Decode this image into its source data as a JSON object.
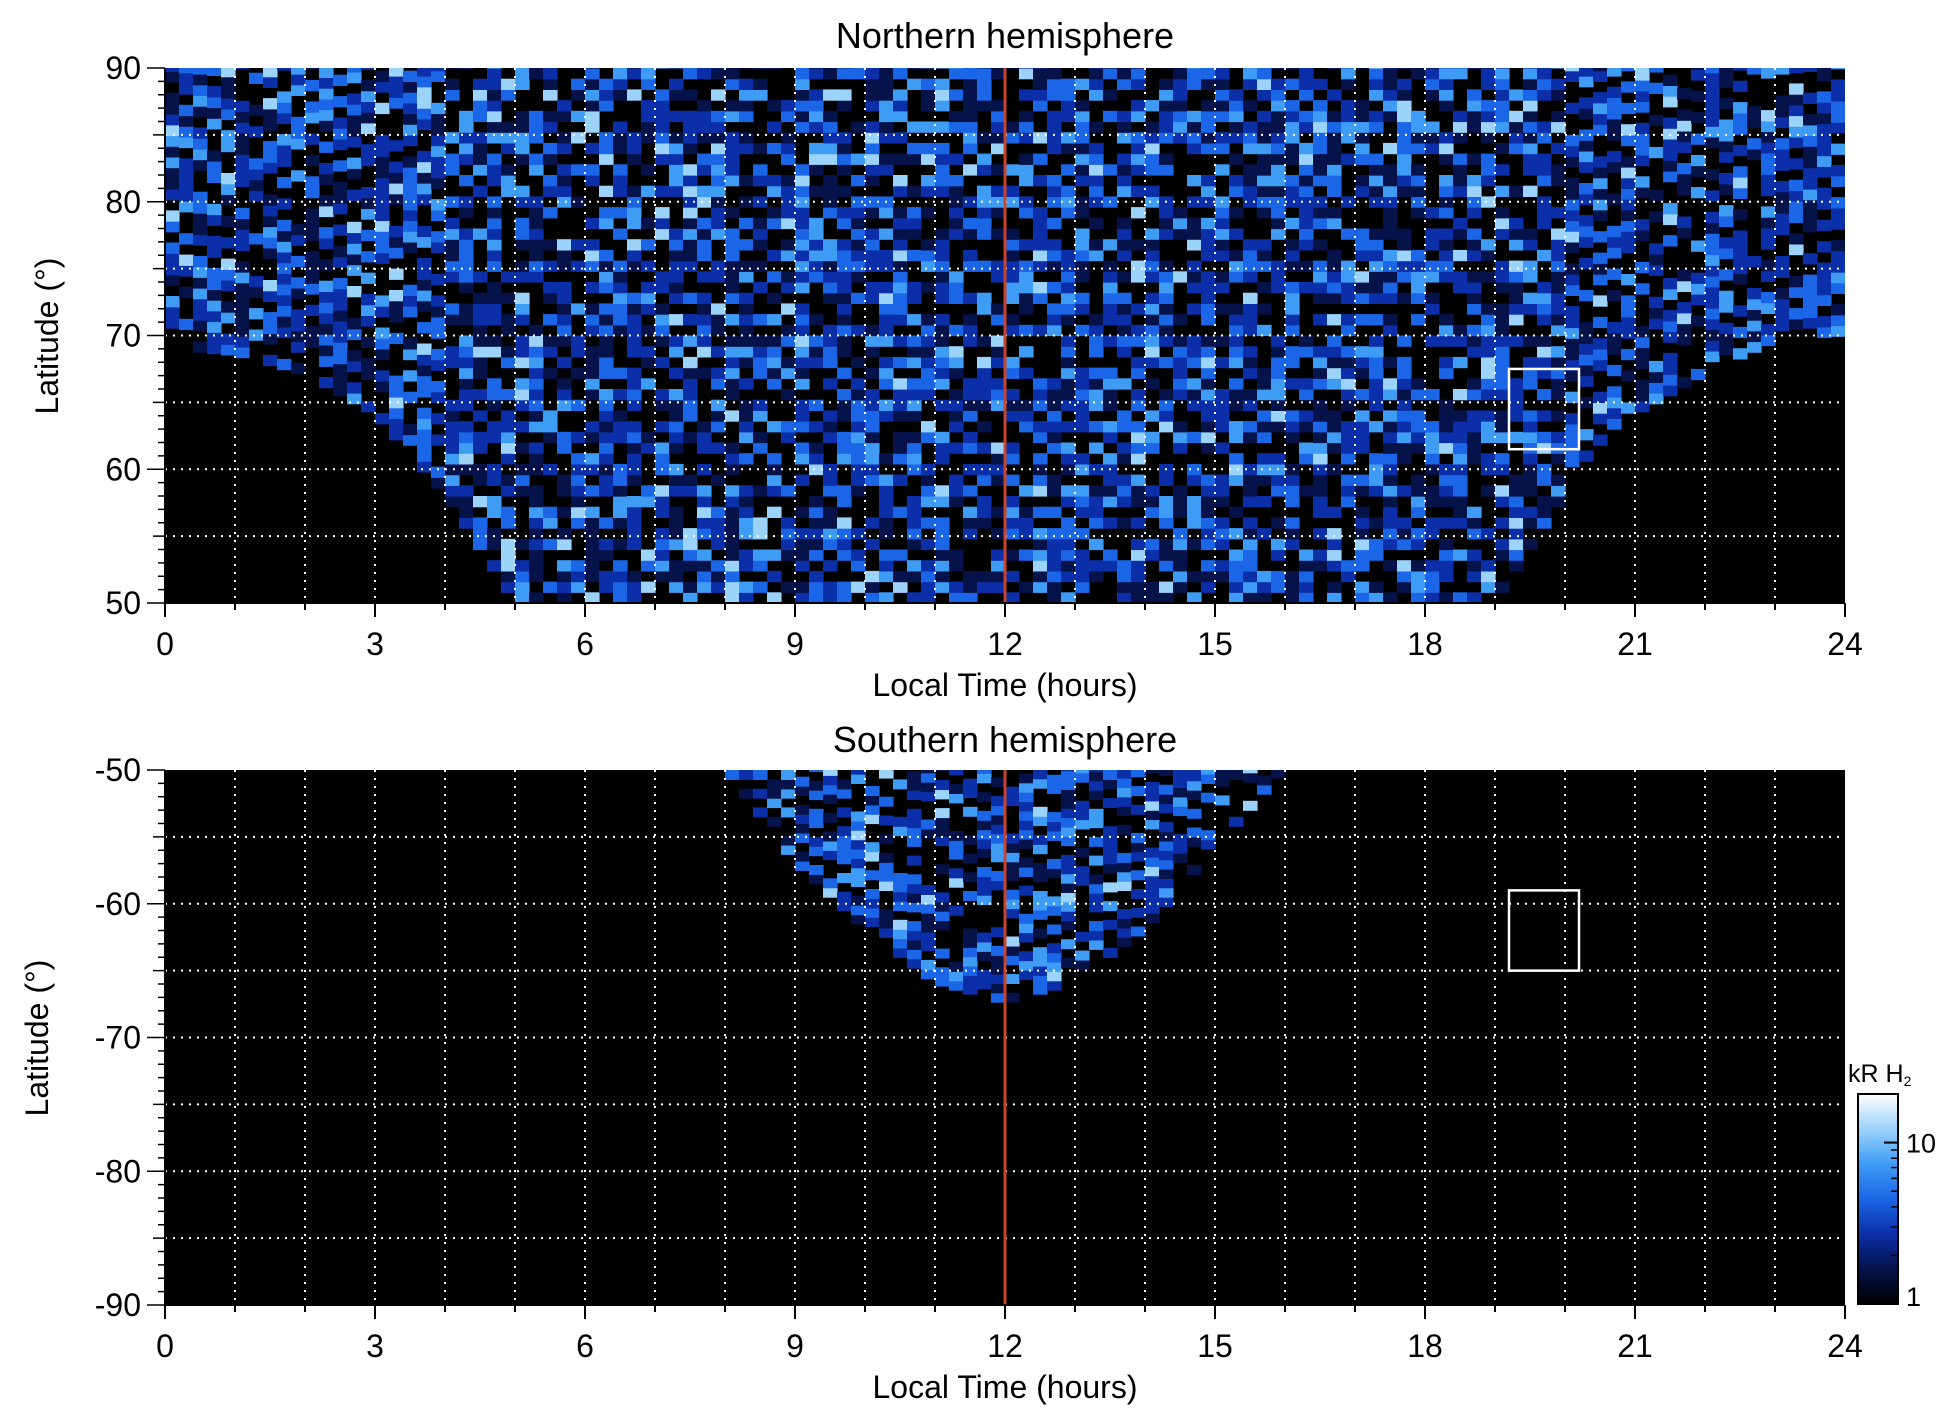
{
  "chart_data": [
    {
      "type": "heatmap",
      "title": "Northern hemisphere",
      "xlabel": "Local Time (hours)",
      "ylabel": "Latitude (°)",
      "xlim": [
        0,
        24
      ],
      "ylim": [
        50,
        90
      ],
      "xticks": [
        "0",
        "3",
        "6",
        "9",
        "12",
        "15",
        "18",
        "21",
        "24"
      ],
      "yticks": [
        "50",
        "60",
        "70",
        "80",
        "90"
      ],
      "grid": true,
      "noon_line_lt": 12,
      "noon_line_color": "#c8442c",
      "box": {
        "lt": [
          19.2,
          20.2
        ],
        "lat": [
          61.5,
          67.5
        ]
      },
      "coverage_edge": [
        [
          0,
          69
        ],
        [
          1,
          68.5
        ],
        [
          2,
          67
        ],
        [
          3,
          64
        ],
        [
          4,
          58
        ],
        [
          5,
          50
        ],
        [
          6,
          50
        ],
        [
          12,
          50
        ],
        [
          18,
          50
        ],
        [
          19,
          50
        ],
        [
          20,
          58
        ],
        [
          21,
          64
        ],
        [
          22,
          67
        ],
        [
          23,
          69.5
        ],
        [
          24,
          70
        ]
      ]
    },
    {
      "type": "heatmap",
      "title": "Southern hemisphere",
      "xlabel": "Local Time (hours)",
      "ylabel": "Latitude (°)",
      "xlim": [
        0,
        24
      ],
      "ylim": [
        -90,
        -50
      ],
      "xticks": [
        "0",
        "3",
        "6",
        "9",
        "12",
        "15",
        "18",
        "21",
        "24"
      ],
      "yticks": [
        "-90",
        "-80",
        "-70",
        "-60",
        "-50"
      ],
      "grid": true,
      "noon_line_lt": 12,
      "noon_line_color": "#c8442c",
      "box": {
        "lt": [
          19.2,
          20.2
        ],
        "lat": [
          -65,
          -59
        ]
      },
      "coverage_edge": [
        [
          8,
          -50
        ],
        [
          9,
          -57
        ],
        [
          10,
          -62
        ],
        [
          11,
          -66
        ],
        [
          12,
          -67.5
        ],
        [
          13,
          -66
        ],
        [
          14,
          -62
        ],
        [
          15,
          -56
        ],
        [
          16,
          -50
        ]
      ]
    }
  ],
  "colorbar": {
    "unit_label": "kR H",
    "unit_subscript": "2",
    "scale": "log",
    "range": [
      1,
      20
    ],
    "ticks": [
      "1",
      "10"
    ],
    "colors": [
      "#000000",
      "#06124a",
      "#0b2fa8",
      "#1a66e6",
      "#3f9cf5",
      "#9cd3fb",
      "#ffffff"
    ]
  }
}
